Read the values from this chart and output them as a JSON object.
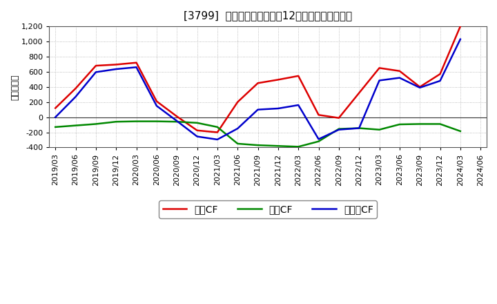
{
  "title": "[3799]  キャッシュフローの12か月移動合計の推移",
  "ylabel": "（百万円）",
  "background_color": "#ffffff",
  "plot_bg_color": "#ffffff",
  "grid_color": "#aaaaaa",
  "ylim": [
    -400,
    1200
  ],
  "yticks": [
    -400,
    -200,
    0,
    200,
    400,
    600,
    800,
    1000,
    1200
  ],
  "dates": [
    "2019/03",
    "2019/06",
    "2019/09",
    "2019/12",
    "2020/03",
    "2020/06",
    "2020/09",
    "2020/12",
    "2021/03",
    "2021/06",
    "2021/09",
    "2021/12",
    "2022/03",
    "2022/06",
    "2022/09",
    "2022/12",
    "2023/03",
    "2023/06",
    "2023/09",
    "2023/12",
    "2024/03",
    "2024/06"
  ],
  "eigyo_cf": [
    120,
    380,
    680,
    695,
    720,
    210,
    10,
    -175,
    -200,
    200,
    450,
    495,
    545,
    30,
    -10,
    null,
    650,
    610,
    400,
    570,
    1200,
    null
  ],
  "toshi_cf": [
    -130,
    -110,
    -90,
    -60,
    -55,
    -55,
    -60,
    -75,
    -130,
    -350,
    -370,
    -380,
    -390,
    -320,
    -155,
    -145,
    -165,
    -95,
    -90,
    -90,
    -185,
    null
  ],
  "free_cf": [
    0,
    270,
    595,
    635,
    660,
    150,
    -50,
    -255,
    -295,
    -150,
    100,
    115,
    160,
    -290,
    -165,
    -145,
    485,
    520,
    390,
    480,
    1030,
    null
  ],
  "eigyo_color": "#dd0000",
  "toshi_color": "#008800",
  "free_color": "#0000cc",
  "legend_labels": [
    "営業CF",
    "投資CF",
    "フリーCF"
  ],
  "linewidth": 1.8
}
